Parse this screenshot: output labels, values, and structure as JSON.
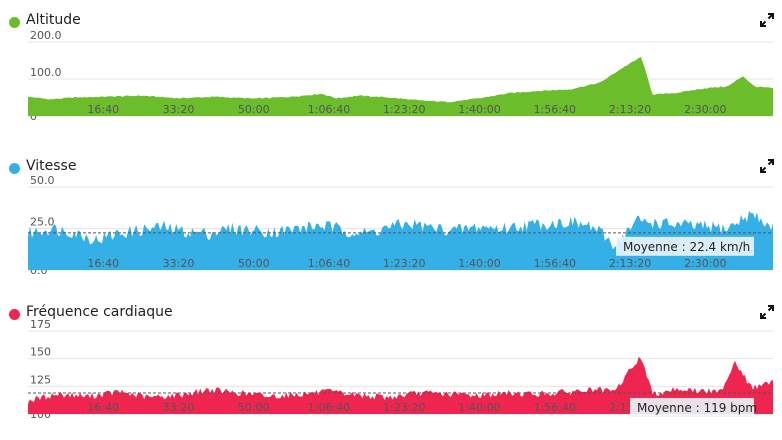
{
  "chart_data": [
    {
      "type": "area",
      "title": "Altitude",
      "color": "#6cbd2c",
      "ylim": [
        0,
        200
      ],
      "y_ticks": [
        "200.0",
        "100.0",
        "0"
      ],
      "y_tick_values": [
        200,
        100,
        0
      ],
      "x_ticks": [
        "16:40",
        "33:20",
        "50:00",
        "1:06:40",
        "1:23:20",
        "1:40:00",
        "1:56:40",
        "2:13:20",
        "2:30:00"
      ],
      "x_unit": "seconds",
      "xlim": [
        0,
        9900
      ],
      "series": [
        {
          "x": [
            0,
            300,
            600,
            1000,
            1500,
            2000,
            2500,
            3000,
            3500,
            3900,
            4100,
            4400,
            4800,
            5200,
            5600,
            6000,
            6400,
            6800,
            7200,
            7600,
            7900,
            8150,
            8300,
            8600,
            9000,
            9300,
            9500,
            9650,
            9900
          ],
          "y": [
            52,
            45,
            50,
            52,
            55,
            48,
            52,
            47,
            52,
            60,
            48,
            55,
            50,
            42,
            38,
            48,
            62,
            68,
            72,
            90,
            130,
            160,
            58,
            62,
            75,
            80,
            108,
            80,
            75
          ]
        }
      ]
    },
    {
      "type": "area",
      "title": "Vitesse",
      "color": "#35b0e6",
      "ylim": [
        0,
        50
      ],
      "y_ticks": [
        "50.0",
        "25.0",
        "0.0"
      ],
      "y_tick_values": [
        50,
        25,
        0
      ],
      "x_ticks": [
        "16:40",
        "33:20",
        "50:00",
        "1:06:40",
        "1:23:20",
        "1:40:00",
        "1:56:40",
        "2:13:20",
        "2:30:00"
      ],
      "x_unit": "seconds",
      "xlim": [
        0,
        9900
      ],
      "average": 22.4,
      "average_label": "Moyenne : 22.4 km/h",
      "series": [
        {
          "x": [
            0,
            300,
            600,
            900,
            1200,
            1500,
            1800,
            2100,
            2400,
            2700,
            3000,
            3300,
            3600,
            3900,
            4200,
            4500,
            4800,
            5100,
            5400,
            5700,
            6000,
            6300,
            6600,
            6900,
            7200,
            7500,
            7800,
            8100,
            8400,
            8700,
            9000,
            9300,
            9600,
            9900
          ],
          "y": [
            22,
            25,
            23,
            18,
            22,
            24,
            26,
            23,
            22,
            25,
            24,
            23,
            25,
            27,
            24,
            22,
            26,
            28,
            25,
            24,
            26,
            25,
            27,
            28,
            29,
            26,
            15,
            30,
            28,
            27,
            26,
            25,
            34,
            25
          ]
        }
      ]
    },
    {
      "type": "area",
      "title": "Fréquence cardiaque",
      "color": "#f0254f",
      "ylim": [
        100,
        175
      ],
      "y_ticks": [
        "175",
        "150",
        "125",
        "100"
      ],
      "y_tick_values": [
        175,
        150,
        125,
        100
      ],
      "x_ticks": [
        "16:40",
        "33:20",
        "50:00",
        "1:06:40",
        "1:23:20",
        "1:40:00",
        "1:56:40",
        "2:13:20",
        "2:30:00"
      ],
      "x_unit": "seconds",
      "xlim": [
        0,
        9900
      ],
      "average": 119,
      "average_label": "Moyenne : 119 bpm",
      "series": [
        {
          "x": [
            0,
            400,
            800,
            1200,
            1600,
            2000,
            2400,
            2800,
            3200,
            3600,
            4000,
            4400,
            4800,
            5200,
            5600,
            6000,
            6400,
            6800,
            7200,
            7500,
            7800,
            8000,
            8150,
            8300,
            8600,
            8900,
            9200,
            9400,
            9600,
            9750,
            9900
          ],
          "y": [
            112,
            118,
            116,
            120,
            115,
            117,
            122,
            119,
            116,
            118,
            120,
            117,
            115,
            119,
            118,
            117,
            119,
            118,
            120,
            122,
            120,
            140,
            152,
            118,
            123,
            121,
            120,
            148,
            124,
            126,
            128
          ]
        }
      ]
    }
  ]
}
